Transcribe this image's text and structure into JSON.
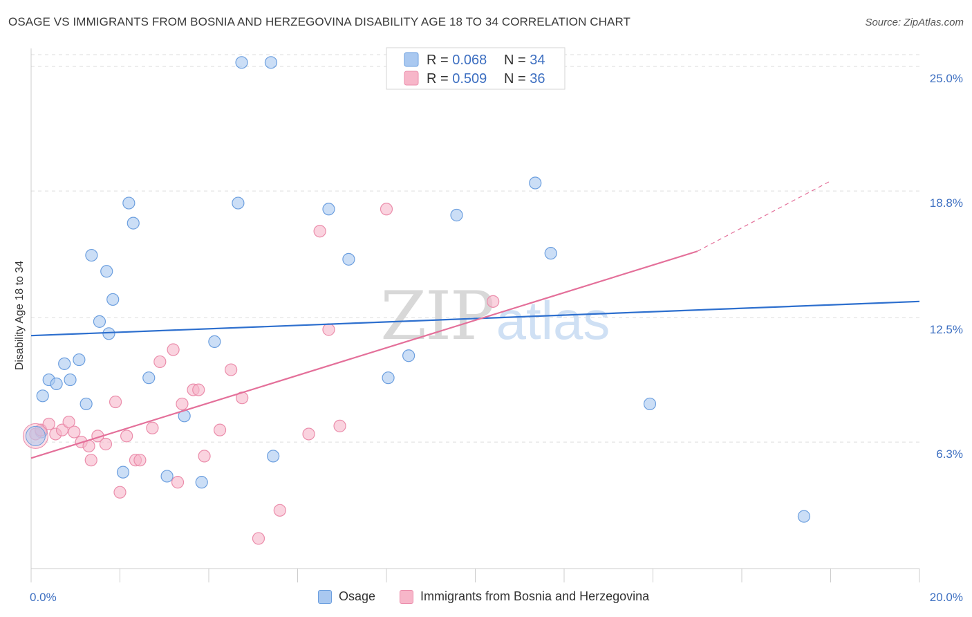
{
  "title": "OSAGE VS IMMIGRANTS FROM BOSNIA AND HERZEGOVINA DISABILITY AGE 18 TO 34 CORRELATION CHART",
  "source": "Source: ZipAtlas.com",
  "watermark": {
    "zip": "ZIP",
    "atlas": "atlas"
  },
  "colors": {
    "blue_fill": "#a9c8f0",
    "blue_stroke": "#6c9fdf",
    "blue_line": "#2d6fce",
    "pink_fill": "#f7b6c9",
    "pink_stroke": "#eb8dab",
    "pink_line": "#e4709a",
    "tick_label": "#3d6fc1",
    "grid": "#dddddd"
  },
  "legend": {
    "rows": [
      {
        "r_label": "R = ",
        "r_value": "0.068",
        "n_label": "N = ",
        "n_value": "34"
      },
      {
        "r_label": "R = ",
        "r_value": "0.509",
        "n_label": "N = ",
        "n_value": "36"
      }
    ]
  },
  "chart_data": {
    "type": "scatter",
    "title": "OSAGE VS IMMIGRANTS FROM BOSNIA AND HERZEGOVINA DISABILITY AGE 18 TO 34 CORRELATION CHART",
    "xlabel": "",
    "ylabel": "Disability Age 18 to 34",
    "xlim": [
      0,
      20
    ],
    "ylim": [
      0,
      25.9
    ],
    "y_ticks": [
      {
        "value": 6.3,
        "label": "6.3%"
      },
      {
        "value": 12.5,
        "label": "12.5%"
      },
      {
        "value": 18.8,
        "label": "18.8%"
      },
      {
        "value": 25.0,
        "label": "25.0%"
      }
    ],
    "x_tick_labels": [
      {
        "value": 0,
        "label": "0.0%"
      },
      {
        "value": 20,
        "label": "20.0%"
      }
    ],
    "x_minor_ticks": [
      2,
      4,
      6,
      8,
      10,
      12,
      14,
      16,
      18,
      20
    ],
    "grid": true,
    "legend_position": "top-center",
    "series": [
      {
        "name": "Osage",
        "r": 0.068,
        "n": 34,
        "trend": {
          "x": [
            0,
            20
          ],
          "y": [
            11.6,
            13.3
          ]
        },
        "points": [
          [
            0.23,
            6.8
          ],
          [
            0.26,
            8.6
          ],
          [
            0.4,
            9.4
          ],
          [
            0.57,
            9.2
          ],
          [
            0.75,
            10.2
          ],
          [
            0.88,
            9.4
          ],
          [
            1.08,
            10.4
          ],
          [
            1.24,
            8.2
          ],
          [
            1.36,
            15.6
          ],
          [
            1.54,
            12.3
          ],
          [
            1.7,
            14.8
          ],
          [
            1.75,
            11.7
          ],
          [
            1.84,
            13.4
          ],
          [
            2.07,
            4.8
          ],
          [
            2.2,
            18.2
          ],
          [
            2.3,
            17.2
          ],
          [
            2.65,
            9.5
          ],
          [
            3.06,
            4.6
          ],
          [
            3.45,
            7.6
          ],
          [
            3.84,
            4.3
          ],
          [
            4.13,
            11.3
          ],
          [
            4.66,
            18.2
          ],
          [
            4.74,
            25.2
          ],
          [
            5.4,
            25.2
          ],
          [
            5.45,
            5.6
          ],
          [
            6.7,
            17.9
          ],
          [
            7.15,
            15.4
          ],
          [
            8.04,
            9.5
          ],
          [
            8.5,
            10.6
          ],
          [
            9.58,
            17.6
          ],
          [
            11.35,
            19.2
          ],
          [
            11.7,
            15.7
          ],
          [
            13.93,
            8.2
          ],
          [
            17.4,
            2.6
          ]
        ]
      },
      {
        "name": "Immigrants from Bosnia and Herzegovina",
        "r": 0.509,
        "n": 36,
        "trend": {
          "x": [
            0,
            15
          ],
          "y": [
            5.5,
            15.8
          ]
        },
        "trend_dashed": {
          "x": [
            15,
            18
          ],
          "y": [
            15.8,
            19.3
          ]
        },
        "points": [
          [
            0.1,
            6.7
          ],
          [
            0.22,
            6.9
          ],
          [
            0.4,
            7.2
          ],
          [
            0.55,
            6.7
          ],
          [
            0.7,
            6.9
          ],
          [
            0.85,
            7.3
          ],
          [
            0.97,
            6.8
          ],
          [
            1.13,
            6.3
          ],
          [
            1.3,
            6.1
          ],
          [
            1.35,
            5.4
          ],
          [
            1.5,
            6.6
          ],
          [
            1.68,
            6.2
          ],
          [
            1.9,
            8.3
          ],
          [
            2.0,
            3.8
          ],
          [
            2.15,
            6.6
          ],
          [
            2.35,
            5.4
          ],
          [
            2.45,
            5.4
          ],
          [
            2.73,
            7.0
          ],
          [
            2.9,
            10.3
          ],
          [
            3.2,
            10.9
          ],
          [
            3.3,
            4.3
          ],
          [
            3.4,
            8.2
          ],
          [
            3.65,
            8.9
          ],
          [
            3.77,
            8.9
          ],
          [
            3.9,
            5.6
          ],
          [
            4.25,
            6.9
          ],
          [
            4.5,
            9.9
          ],
          [
            4.75,
            8.5
          ],
          [
            5.12,
            1.5
          ],
          [
            5.6,
            2.9
          ],
          [
            6.25,
            6.7
          ],
          [
            6.5,
            16.8
          ],
          [
            6.7,
            11.9
          ],
          [
            6.95,
            7.1
          ],
          [
            8.0,
            17.9
          ],
          [
            10.4,
            13.3
          ]
        ]
      }
    ]
  },
  "bottom_legend": [
    {
      "label": "Osage"
    },
    {
      "label": "Immigrants from Bosnia and Herzegovina"
    }
  ]
}
